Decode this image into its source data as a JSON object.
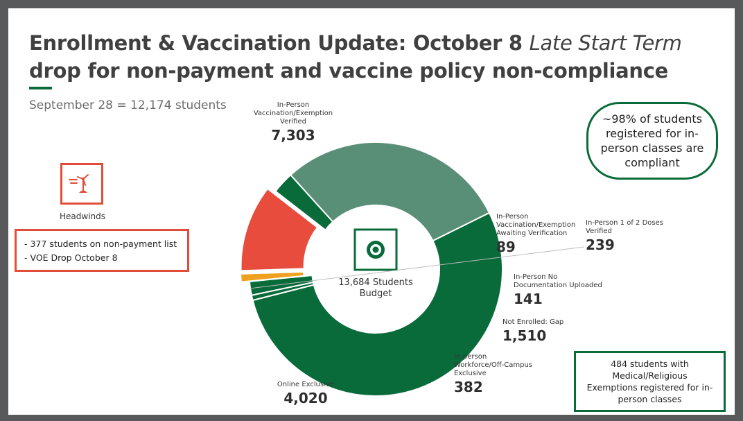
{
  "slide": {
    "title_line1_regular": "Enrollment & Vaccination Update: October 8 ",
    "title_line1_italic": "Late Start Term",
    "title_line2": "drop for non-payment and vaccine policy non-compliance",
    "subtitle": "September 28 = 12,174 students"
  },
  "headwinds": {
    "icon": "wind-turbine-icon",
    "label": "Headwinds",
    "items": [
      "- 377 students on non-payment list",
      "- VOE Drop October 8"
    ]
  },
  "callouts": {
    "compliance": "~98% of students registered for in-person classes are compliant",
    "exemptions": "484 students with Medical/Religious Exemptions registered for in-person classes"
  },
  "colors": {
    "dark_green": "#0a6b3a",
    "light_green": "#5a8f77",
    "orange": "#f0a01f",
    "red": "#e84c3c",
    "outline_red": "#e04e39"
  },
  "chart_data": {
    "type": "pie",
    "center_label": [
      "13,684 Students",
      "Budget"
    ],
    "center_icon": "target-icon",
    "slices": [
      {
        "label": [
          "In-Person",
          "Vaccination/Exemption",
          "Verified"
        ],
        "value": 7303,
        "value_label": "7,303",
        "color": "#0a6b3a"
      },
      {
        "label": [
          "In-Person",
          "Vaccination/Exemption",
          "Awaiting Verification"
        ],
        "value": 89,
        "value_label": "89",
        "color": "#0a6b3a"
      },
      {
        "label": [
          "In-Person 1 of 2 Doses",
          "Verified"
        ],
        "value": 239,
        "value_label": "239",
        "color": "#0a6b3a"
      },
      {
        "label": [
          "In-Person No",
          "Documentation Uploaded"
        ],
        "value": 141,
        "value_label": "141",
        "color": "#f0a01f"
      },
      {
        "label": [
          "Not Enrolled: Gap"
        ],
        "value": 1510,
        "value_label": "1,510",
        "color": "#e84c3c"
      },
      {
        "label": [
          "In-person",
          "Workforce/Off-Campus",
          "Exclusive"
        ],
        "value": 382,
        "value_label": "382",
        "color": "#0a6b3a"
      },
      {
        "label": [
          "Online Exclusive"
        ],
        "value": 4020,
        "value_label": "4,020",
        "color": "#5a8f77"
      }
    ]
  }
}
